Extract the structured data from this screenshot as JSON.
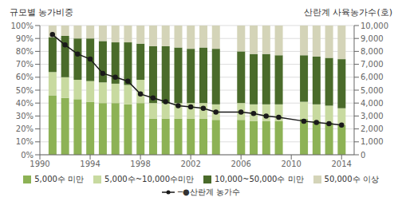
{
  "chart_data": {
    "type": "bar",
    "stacked": true,
    "ylabel": "규모별 농가비중",
    "y2label": "산란계 사육농가수(호)",
    "x": [
      1991,
      1992,
      1993,
      1994,
      1995,
      1996,
      1997,
      1998,
      1999,
      2000,
      2001,
      2002,
      2003,
      2004,
      2006,
      2007,
      2008,
      2009,
      2011,
      2012,
      2013,
      2014
    ],
    "xlim": [
      1990,
      2015
    ],
    "xticks": [
      1990,
      1994,
      1998,
      2002,
      2006,
      2010,
      2014
    ],
    "ylim": [
      0,
      100
    ],
    "yticks": [
      {
        "value": 0,
        "label": "0%"
      },
      {
        "value": 10,
        "label": "10%"
      },
      {
        "value": 20,
        "label": "20%"
      },
      {
        "value": 30,
        "label": "30%"
      },
      {
        "value": 40,
        "label": "40%"
      },
      {
        "value": 50,
        "label": "50%"
      },
      {
        "value": 60,
        "label": "60%"
      },
      {
        "value": 70,
        "label": "70%"
      },
      {
        "value": 80,
        "label": "80%"
      },
      {
        "value": 90,
        "label": "90%"
      },
      {
        "value": 100,
        "label": "100%"
      }
    ],
    "y2lim": [
      0,
      10000
    ],
    "y2ticks": [
      0,
      {
        "value": 1000,
        "label": "1,000"
      },
      {
        "value": 2000,
        "label": "2,000"
      },
      {
        "value": 3000,
        "label": "3,000"
      },
      {
        "value": 4000,
        "label": "4,000"
      },
      {
        "value": 5000,
        "label": "5,000"
      },
      {
        "value": 6000,
        "label": "6,000"
      },
      {
        "value": 7000,
        "label": "7,000"
      },
      {
        "value": 8000,
        "label": "8,000"
      },
      {
        "value": 9000,
        "label": "9,000"
      },
      {
        "value": 10000,
        "label": "10,000"
      }
    ],
    "grid": true,
    "legend": "bottom",
    "series": [
      {
        "name": "5,000수  미만",
        "type": "bar",
        "color": "#8db255",
        "values": [
          46,
          44,
          43,
          41,
          40,
          40,
          39,
          40,
          28,
          28,
          28,
          28,
          28,
          27,
          27,
          26,
          26,
          26,
          28,
          26,
          25,
          23
        ]
      },
      {
        "name": "5,000수~10,000수미만",
        "type": "bar",
        "color": "#c8daa0",
        "values": [
          18,
          16,
          15,
          16,
          16,
          15,
          15,
          18,
          12,
          12,
          12,
          12,
          12,
          12,
          13,
          13,
          13,
          13,
          13,
          13,
          13,
          13
        ]
      },
      {
        "name": "10,000~50,000수 미만",
        "type": "bar",
        "color": "#4a6b2a",
        "values": [
          27,
          32,
          32,
          33,
          32,
          32,
          33,
          28,
          44,
          44,
          43,
          42,
          43,
          43,
          40,
          39,
          39,
          38,
          36,
          37,
          37,
          38
        ]
      },
      {
        "name": "50,000수 이상",
        "type": "bar",
        "color": "#d4d4b8",
        "values": [
          9,
          8,
          10,
          10,
          12,
          13,
          13,
          14,
          16,
          16,
          17,
          18,
          17,
          18,
          20,
          22,
          22,
          23,
          23,
          24,
          25,
          26
        ]
      },
      {
        "name": "─●산란계 농가수",
        "type": "line",
        "color": "#1a1a1a",
        "marker": "circle",
        "axis": "y2",
        "values": [
          9300,
          8500,
          7800,
          7400,
          6300,
          6000,
          5700,
          4700,
          4400,
          4100,
          3800,
          3700,
          3600,
          3300,
          3300,
          3200,
          3000,
          2900,
          2600,
          2500,
          2400,
          2300
        ]
      }
    ]
  }
}
